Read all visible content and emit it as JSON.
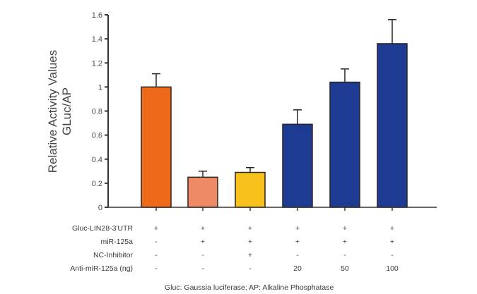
{
  "chart_data": {
    "type": "bar",
    "title": "",
    "ylabel": [
      "Relative Activity Values",
      "GLuc/AP"
    ],
    "xlabel": "",
    "ylim": [
      0,
      1.6
    ],
    "yticks": [
      "0",
      "0.2",
      "0.4",
      "0.6",
      "0.8",
      "1",
      "1.2",
      "1.4",
      "1.6"
    ],
    "ytick_values": [
      0,
      0.2,
      0.4,
      0.6,
      0.8,
      1.0,
      1.2,
      1.4,
      1.6
    ],
    "grid": false,
    "bars": [
      {
        "value": 1.0,
        "error": 0.11,
        "color": "#EE6A1B"
      },
      {
        "value": 0.25,
        "error": 0.05,
        "color": "#EE8B66"
      },
      {
        "value": 0.29,
        "error": 0.04,
        "color": "#F8C01A"
      },
      {
        "value": 0.69,
        "error": 0.12,
        "color": "#1D3B93"
      },
      {
        "value": 1.04,
        "error": 0.11,
        "color": "#1D3B93"
      },
      {
        "value": 1.36,
        "error": 0.2,
        "color": "#1D3B93"
      }
    ],
    "conditions": {
      "rows": [
        {
          "label": "Gluc-LIN28-3'UTR",
          "cells": [
            "+",
            "+",
            "+",
            "+",
            "+",
            "+"
          ]
        },
        {
          "label": "miR-125a",
          "cells": [
            "-",
            "+",
            "+",
            "+",
            "+",
            "+"
          ]
        },
        {
          "label": "NC-Inhibitor",
          "cells": [
            "-",
            "-",
            "+",
            "-",
            "-",
            "-"
          ]
        },
        {
          "label": "Anti-miR-125a (ng)",
          "cells": [
            "-",
            "-",
            "-",
            "20",
            "50",
            "100"
          ]
        }
      ]
    },
    "footnote": "Gluc: Gaussia luciferase; AP: Alkaline Phosphatase"
  }
}
